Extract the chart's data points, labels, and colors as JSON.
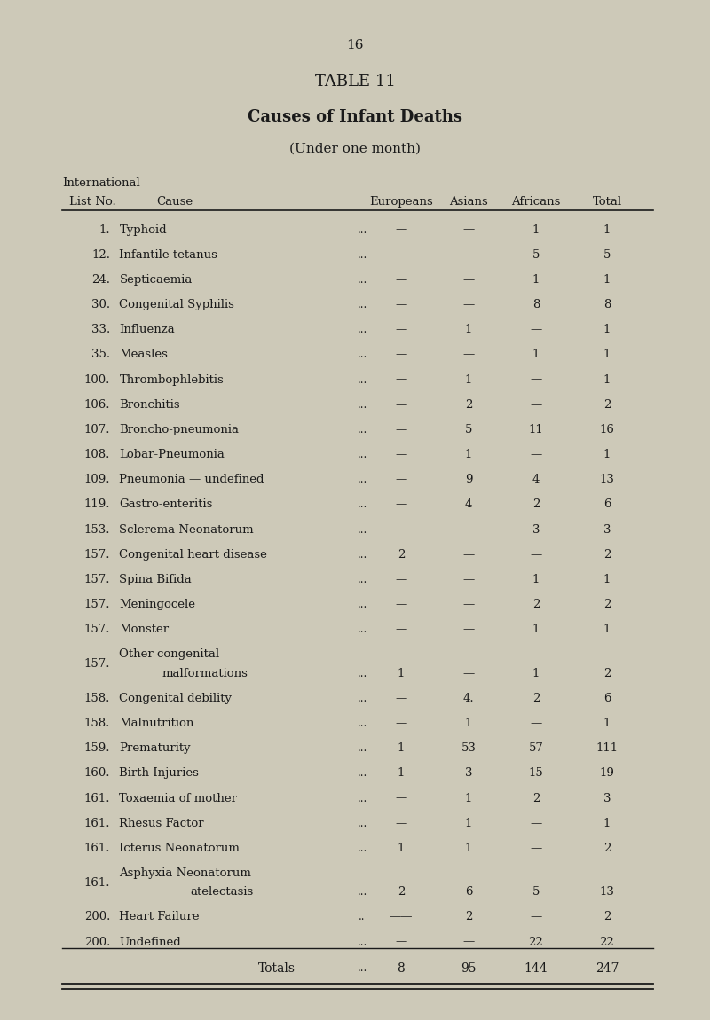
{
  "page_number": "16",
  "table_title": "TABLE 11",
  "subtitle1": "Causes of Infant Deaths",
  "subtitle2": "(Under one month)",
  "header_line1": "International",
  "header_col1": "List No.",
  "header_col2": "Cause",
  "header_col3": "Europeans",
  "header_col4": "Asians",
  "header_col5": "Africans",
  "header_col6": "Total",
  "rows": [
    [
      "1.",
      "Typhoid",
      "...",
      "—",
      "—",
      "1",
      "1"
    ],
    [
      "12.",
      "Infantile tetanus",
      "...",
      "—",
      "—",
      "5",
      "5"
    ],
    [
      "24.",
      "Septicaemia",
      "...",
      "—",
      "—",
      "1",
      "1"
    ],
    [
      "30.",
      "Congenital Syphilis",
      "...",
      "—",
      "—",
      "8",
      "8"
    ],
    [
      "33.",
      "Influenza",
      "...",
      "—",
      "1",
      "—",
      "1"
    ],
    [
      "35.",
      "Measles",
      "...",
      "—",
      "—",
      "1",
      "1"
    ],
    [
      "100.",
      "Thrombophlebitis",
      "...",
      "—",
      "1",
      "—",
      "1"
    ],
    [
      "106.",
      "Bronchitis",
      "...",
      "—",
      "2",
      "—",
      "2"
    ],
    [
      "107.",
      "Broncho-pneumonia",
      "...",
      "—",
      "5",
      "11",
      "16"
    ],
    [
      "108.",
      "Lobar-Pneumonia",
      "...",
      "—",
      "1",
      "—",
      "1"
    ],
    [
      "109.",
      "Pneumonia — undefined",
      "...",
      "—",
      "9",
      "4",
      "13"
    ],
    [
      "119.",
      "Gastro-enteritis",
      "...",
      "—",
      "4",
      "2",
      "6"
    ],
    [
      "153.",
      "Sclerema Neonatorum",
      "...",
      "—",
      "—",
      "3",
      "3"
    ],
    [
      "157.",
      "Congenital heart disease",
      "...",
      "2",
      "—",
      "—",
      "2"
    ],
    [
      "157.",
      "Spina Bifida",
      "...",
      "—",
      "—",
      "1",
      "1"
    ],
    [
      "157.",
      "Meningocele",
      "...",
      "—",
      "—",
      "2",
      "2"
    ],
    [
      "157.",
      "Monster",
      "...",
      "—",
      "—",
      "1",
      "1"
    ],
    [
      "157.",
      "Other congenital\nmalformations",
      "...",
      "1",
      "—",
      "1",
      "2"
    ],
    [
      "158.",
      "Congenital debility",
      "...",
      "—",
      "4.",
      "2",
      "6"
    ],
    [
      "158.",
      "Malnutrition",
      "...",
      "—",
      "1",
      "—",
      "1"
    ],
    [
      "159.",
      "Prematurity",
      "...",
      "1",
      "53",
      "57",
      "111"
    ],
    [
      "160.",
      "Birth Injuries",
      "...",
      "1",
      "3",
      "15",
      "19"
    ],
    [
      "161.",
      "Toxaemia of mother",
      "...",
      "—",
      "1",
      "2",
      "3"
    ],
    [
      "161.",
      "Rhesus Factor",
      "...",
      "—",
      "1",
      "—",
      "1"
    ],
    [
      "161.",
      "Icterus Neonatorum",
      "...",
      "1",
      "1",
      "—",
      "2"
    ],
    [
      "161.",
      "Asphyxia Neonatorum\natelectasis",
      "...",
      "2",
      "6",
      "5",
      "13"
    ],
    [
      "200.",
      "Heart Failure",
      "..",
      "——",
      "2",
      "—",
      "2"
    ],
    [
      "200.",
      "Undefined",
      "...",
      "—",
      "—",
      "22",
      "22"
    ]
  ],
  "totals_label": "Totals",
  "totals": [
    "...",
    "8",
    "95",
    "144",
    "247"
  ],
  "bg_color": "#cdc9b8",
  "text_color": "#1a1a1a",
  "font_family": "serif"
}
